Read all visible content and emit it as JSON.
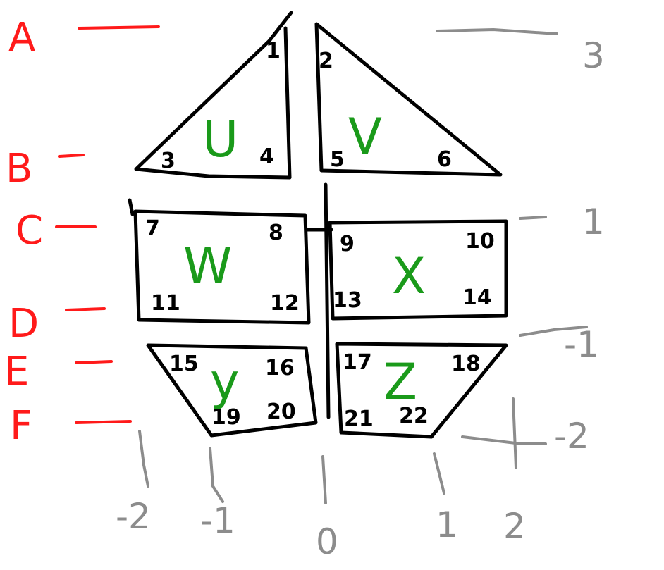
{
  "colors": {
    "ink": "#000000",
    "labels": "#ff1a1a",
    "shape_letters": "#1a9a1a",
    "scale": "#8c8c8c"
  },
  "row_labels": [
    "A",
    "B",
    "C",
    "D",
    "E",
    "F"
  ],
  "shapes": {
    "U": {
      "letter": "U",
      "vertices": [
        "1",
        "3",
        "4"
      ]
    },
    "V": {
      "letter": "V",
      "vertices": [
        "2",
        "5",
        "6"
      ]
    },
    "W": {
      "letter": "W",
      "vertices": [
        "7",
        "8",
        "11",
        "12"
      ]
    },
    "X": {
      "letter": "X",
      "vertices": [
        "9",
        "10",
        "13",
        "14"
      ]
    },
    "Y": {
      "letter": "y",
      "vertices": [
        "15",
        "16",
        "19",
        "20"
      ]
    },
    "Z": {
      "letter": "Z",
      "vertices": [
        "17",
        "18",
        "21",
        "22"
      ]
    }
  },
  "vertical_scale": [
    "3",
    "1",
    "-1",
    "-2"
  ],
  "horizontal_scale": [
    "-2",
    "-1",
    "0",
    "1",
    "2"
  ]
}
